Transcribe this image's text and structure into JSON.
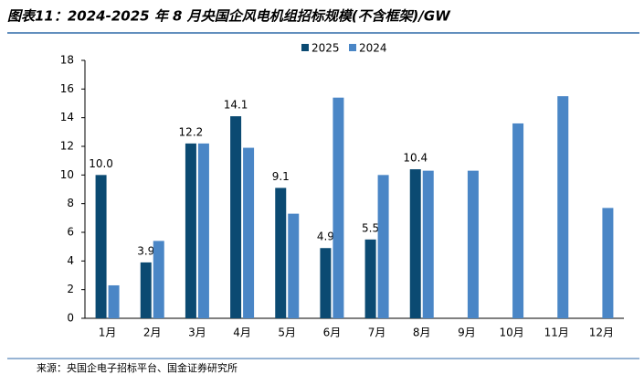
{
  "chart_data": {
    "type": "bar",
    "title": "图表11：2024-2025 年 8 月央国企风电机组招标规模(不含框架)/GW",
    "source": "来源：央国企电子招标平台、国金证券研究所",
    "categories": [
      "1月",
      "2月",
      "3月",
      "4月",
      "5月",
      "6月",
      "7月",
      "8月",
      "9月",
      "10月",
      "11月",
      "12月"
    ],
    "series": [
      {
        "name": "2025",
        "color": "#0b4a72",
        "values": [
          10.0,
          3.9,
          12.2,
          14.1,
          9.1,
          4.9,
          5.5,
          10.4,
          null,
          null,
          null,
          null
        ],
        "value_labels": [
          "10.0",
          "3.9",
          "12.2",
          "14.1",
          "9.1",
          "4.9",
          "5.5",
          "10.4",
          null,
          null,
          null,
          null
        ]
      },
      {
        "name": "2024",
        "color": "#4a86c6",
        "values": [
          2.3,
          5.4,
          12.2,
          11.9,
          7.3,
          15.4,
          10.0,
          10.3,
          10.3,
          13.6,
          15.5,
          7.7
        ]
      }
    ],
    "ylim": [
      0,
      18
    ],
    "yticks": [
      0,
      2,
      4,
      6,
      8,
      10,
      12,
      14,
      16,
      18
    ],
    "legend": "top"
  }
}
